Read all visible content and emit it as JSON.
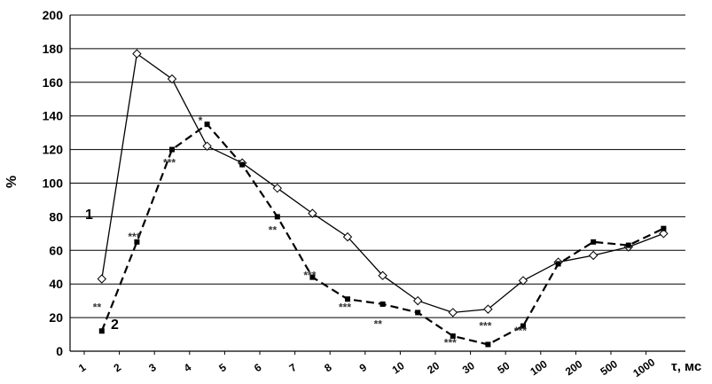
{
  "chart_data": {
    "type": "line",
    "title": "",
    "ylabel": "%",
    "xlabel": "τ, мс",
    "ylim": [
      0,
      200
    ],
    "yticks": [
      "0",
      "20",
      "40",
      "60",
      "80",
      "100",
      "120",
      "140",
      "160",
      "180",
      "200"
    ],
    "categories": [
      "1",
      "2",
      "3",
      "4",
      "5",
      "6",
      "7",
      "8",
      "9",
      "10",
      "20",
      "30",
      "50",
      "100",
      "200",
      "500",
      "1000"
    ],
    "grid": true,
    "legend": "none",
    "series": [
      {
        "name": "1",
        "style": "solid",
        "marker": "diamond-open",
        "values": [
          43,
          177,
          162,
          122,
          112,
          97,
          82,
          68,
          45,
          30,
          23,
          25,
          42,
          53,
          57,
          62,
          70
        ]
      },
      {
        "name": "2",
        "style": "dashed",
        "marker": "square-filled",
        "values": [
          12,
          65,
          120,
          135,
          111,
          80,
          44,
          31,
          28,
          23,
          9,
          4,
          15,
          52,
          65,
          63,
          73
        ]
      }
    ],
    "annotations": [
      {
        "text": "**",
        "category": "1",
        "y": 24
      },
      {
        "text": "***",
        "category": "2",
        "y": 66
      },
      {
        "text": "***",
        "category": "3",
        "y": 110
      },
      {
        "text": "*",
        "category": "4",
        "y": 135
      },
      {
        "text": "**",
        "category": "6",
        "y": 70
      },
      {
        "text": "***",
        "category": "7",
        "y": 43
      },
      {
        "text": "***",
        "category": "8",
        "y": 24
      },
      {
        "text": "**",
        "category": "9",
        "y": 14
      },
      {
        "text": "***",
        "category": "20",
        "y": 3
      },
      {
        "text": "***",
        "category": "30",
        "y": 13
      },
      {
        "text": "***",
        "category": "50",
        "y": 10
      }
    ]
  }
}
